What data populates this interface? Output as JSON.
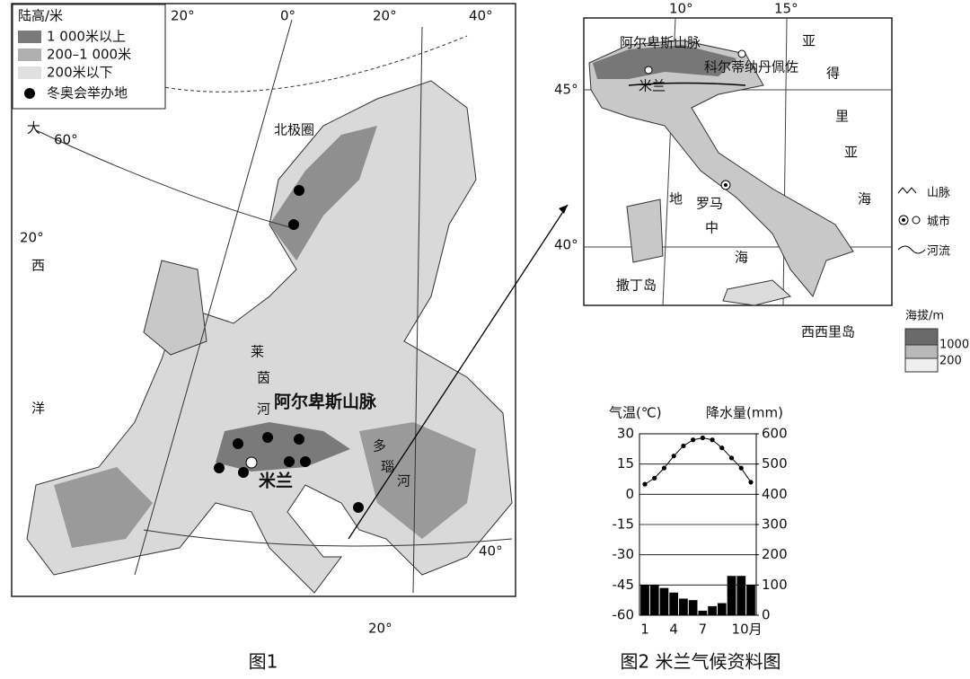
{
  "figure1": {
    "legend": {
      "title": "陆高/米",
      "items": [
        "1 000米以上",
        "200–1 000米",
        "200米以下",
        "冬奥会举办地"
      ]
    },
    "labels": [
      "20°",
      "0°",
      "20°",
      "40°",
      "大",
      "60°",
      "20°",
      "西",
      "洋",
      "北极圈",
      "莱",
      "茵",
      "河",
      "阿尔卑斯山脉",
      "多",
      "瑙",
      "河",
      "米兰",
      "40°",
      "20°"
    ],
    "caption": "图1"
  },
  "figure2": {
    "labels": [
      "10°",
      "15°",
      "45°",
      "40°",
      "阿尔卑斯山脉",
      "科尔蒂纳丹佩佐",
      "米兰",
      "亚",
      "得",
      "里",
      "亚",
      "海",
      "地",
      "罗马",
      "中",
      "海",
      "撒丁岛",
      "西西里岛"
    ],
    "legend": {
      "items": [
        "山脉",
        "城市",
        "河流"
      ],
      "elevation_title": "海拔/m",
      "elevation_values": [
        "1000",
        "200"
      ]
    },
    "caption": "图2 米兰气候资料图"
  },
  "chart_data": {
    "type": "climate",
    "ylabel": "气温(℃)",
    "y2label": "降水量(mm)",
    "categories": [
      "1",
      null,
      null,
      "4",
      null,
      null,
      "7",
      null,
      null,
      "10月",
      null,
      null
    ],
    "series": [
      {
        "type": "line",
        "color": "#000000",
        "values": [
          5,
          8,
          13,
          19,
          24,
          27,
          28,
          27,
          23,
          18,
          13,
          6
        ]
      },
      {
        "type": "bar",
        "axis": "y2",
        "color": "#000000",
        "values": [
          100,
          100,
          90,
          75,
          55,
          50,
          15,
          30,
          40,
          130,
          130,
          100
        ]
      }
    ],
    "ylim": [
      -60,
      30
    ],
    "yticks": [
      30,
      15,
      0,
      -15,
      -30,
      -45,
      -60
    ],
    "y2lim": [
      0,
      600
    ],
    "y2ticks": [
      600,
      500,
      400,
      300,
      200,
      100,
      0
    ],
    "grid": true
  }
}
